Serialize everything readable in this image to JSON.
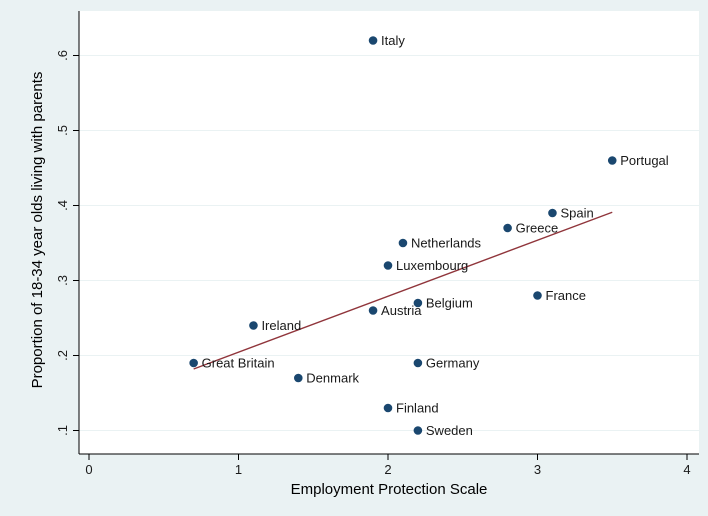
{
  "chart_data": {
    "type": "scatter",
    "xlabel": "Employment Protection Scale",
    "ylabel": "Proportion of 18-34 year olds living with parents",
    "xlim": [
      0,
      4
    ],
    "ylim": [
      0.09,
      0.63
    ],
    "xticks": [
      0,
      1,
      2,
      3,
      4
    ],
    "xtick_labels": [
      "0",
      "1",
      "2",
      "3",
      "4"
    ],
    "yticks": [
      0.1,
      0.2,
      0.3,
      0.4,
      0.5,
      0.6
    ],
    "ytick_labels": [
      ".1",
      ".2",
      ".3",
      ".4",
      ".5",
      ".6"
    ],
    "grid": "horizontal",
    "legend": "none",
    "points": [
      {
        "label": "Italy",
        "x": 1.9,
        "y": 0.62
      },
      {
        "label": "Portugal",
        "x": 3.5,
        "y": 0.46
      },
      {
        "label": "Spain",
        "x": 3.1,
        "y": 0.39
      },
      {
        "label": "Greece",
        "x": 2.8,
        "y": 0.37
      },
      {
        "label": "Netherlands",
        "x": 2.1,
        "y": 0.35
      },
      {
        "label": "Luxembourg",
        "x": 2.0,
        "y": 0.32
      },
      {
        "label": "France",
        "x": 3.0,
        "y": 0.28
      },
      {
        "label": "Belgium",
        "x": 2.2,
        "y": 0.27
      },
      {
        "label": "Austria",
        "x": 1.9,
        "y": 0.26
      },
      {
        "label": "Ireland",
        "x": 1.1,
        "y": 0.24
      },
      {
        "label": "Great Britain",
        "x": 0.7,
        "y": 0.19
      },
      {
        "label": "Germany",
        "x": 2.2,
        "y": 0.19
      },
      {
        "label": "Denmark",
        "x": 1.4,
        "y": 0.17
      },
      {
        "label": "Finland",
        "x": 2.0,
        "y": 0.13
      },
      {
        "label": "Sweden",
        "x": 2.2,
        "y": 0.1
      }
    ],
    "fit_line": {
      "x": [
        0.7,
        3.5
      ],
      "y": [
        0.182,
        0.391
      ]
    },
    "colors": {
      "background": "#eaf2f3",
      "plot_background": "#ffffff",
      "marker": "#1a476f",
      "fit_line": "#90353b",
      "grid": "#eaf2f3",
      "axis": "#000000"
    }
  }
}
